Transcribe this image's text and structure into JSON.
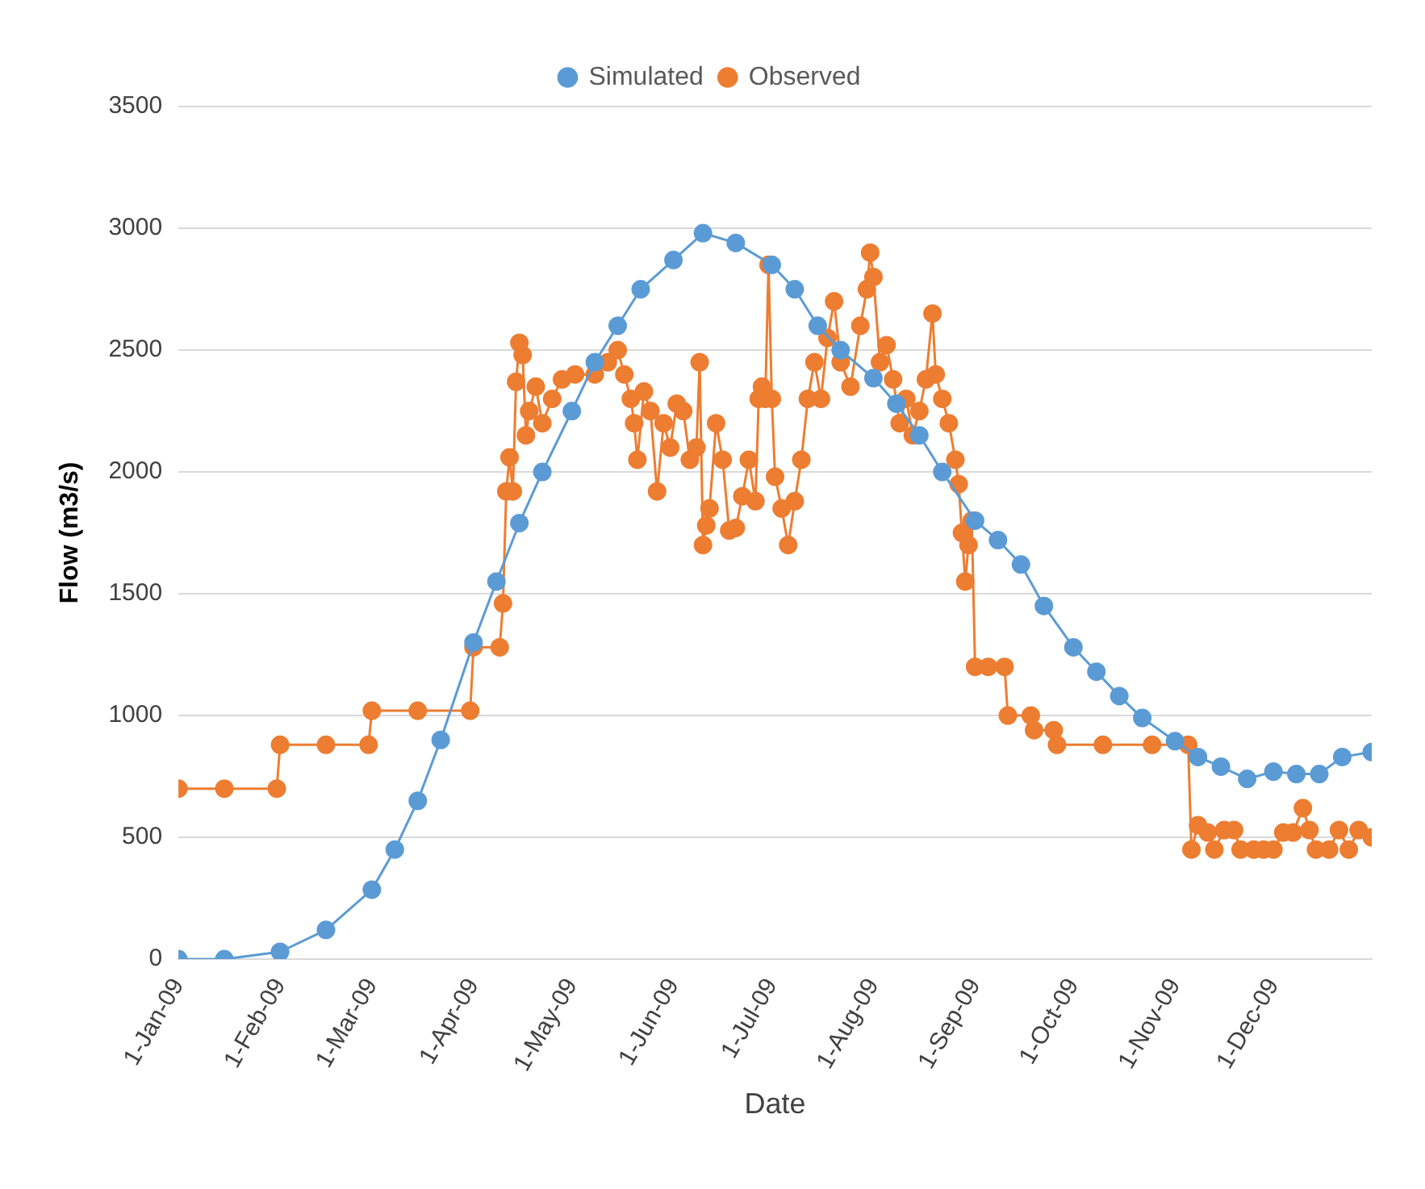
{
  "chart_data": {
    "type": "line",
    "xlabel": "Date",
    "ylabel": "Flow (m3/s)",
    "xlim": [
      "2009-01-01",
      "2009-12-31"
    ],
    "xticks": [
      {
        "value": "2009-01-01",
        "label": "1-Jan-09"
      },
      {
        "value": "2009-02-01",
        "label": "1-Feb-09"
      },
      {
        "value": "2009-03-01",
        "label": "1-Mar-09"
      },
      {
        "value": "2009-04-01",
        "label": "1-Apr-09"
      },
      {
        "value": "2009-05-01",
        "label": "1-May-09"
      },
      {
        "value": "2009-06-01",
        "label": "1-Jun-09"
      },
      {
        "value": "2009-07-01",
        "label": "1-Jul-09"
      },
      {
        "value": "2009-08-01",
        "label": "1-Aug-09"
      },
      {
        "value": "2009-09-01",
        "label": "1-Sep-09"
      },
      {
        "value": "2009-10-01",
        "label": "1-Oct-09"
      },
      {
        "value": "2009-11-01",
        "label": "1-Nov-09"
      },
      {
        "value": "2009-12-01",
        "label": "1-Dec-09"
      }
    ],
    "ylim": [
      0,
      3500
    ],
    "yticks": [
      0,
      500,
      1000,
      1500,
      2000,
      2500,
      3000,
      3500
    ],
    "grid": "y",
    "legend": "top",
    "marker": "circle",
    "line_style": "solid",
    "series": [
      {
        "name": "Simulated",
        "color": "#5b9bd5",
        "x": [
          "2009-01-01",
          "2009-01-15",
          "2009-02-01",
          "2009-02-15",
          "2009-03-01",
          "2009-03-08",
          "2009-03-15",
          "2009-03-22",
          "2009-04-01",
          "2009-04-08",
          "2009-04-15",
          "2009-04-22",
          "2009-05-01",
          "2009-05-08",
          "2009-05-15",
          "2009-05-22",
          "2009-06-01",
          "2009-06-10",
          "2009-06-20",
          "2009-07-01",
          "2009-07-08",
          "2009-07-15",
          "2009-07-22",
          "2009-08-01",
          "2009-08-08",
          "2009-08-15",
          "2009-08-22",
          "2009-09-01",
          "2009-09-08",
          "2009-09-15",
          "2009-09-22",
          "2009-10-01",
          "2009-10-08",
          "2009-10-15",
          "2009-10-22",
          "2009-11-01",
          "2009-11-08",
          "2009-11-15",
          "2009-11-23",
          "2009-12-01",
          "2009-12-08",
          "2009-12-15",
          "2009-12-22",
          "2009-12-31"
        ],
        "values": [
          0,
          0,
          30,
          120,
          285,
          450,
          650,
          900,
          1300,
          1550,
          1790,
          2000,
          2250,
          2450,
          2600,
          2750,
          2870,
          2980,
          2940,
          2850,
          2750,
          2600,
          2500,
          2385,
          2280,
          2150,
          2000,
          1800,
          1720,
          1620,
          1450,
          1280,
          1180,
          1080,
          990,
          895,
          830,
          790,
          740,
          770,
          760,
          760,
          830,
          850
        ]
      },
      {
        "name": "Observed",
        "color": "#ed7d31",
        "x": [
          "2009-01-01",
          "2009-01-15",
          "2009-01-31",
          "2009-02-01",
          "2009-02-15",
          "2009-02-28",
          "2009-03-01",
          "2009-03-15",
          "2009-03-31",
          "2009-04-01",
          "2009-04-09",
          "2009-04-10",
          "2009-04-11",
          "2009-04-12",
          "2009-04-13",
          "2009-04-14",
          "2009-04-15",
          "2009-04-16",
          "2009-04-17",
          "2009-04-18",
          "2009-04-20",
          "2009-04-22",
          "2009-04-25",
          "2009-04-28",
          "2009-05-02",
          "2009-05-08",
          "2009-05-12",
          "2009-05-15",
          "2009-05-17",
          "2009-05-19",
          "2009-05-20",
          "2009-05-21",
          "2009-05-23",
          "2009-05-25",
          "2009-05-27",
          "2009-05-29",
          "2009-05-31",
          "2009-06-02",
          "2009-06-04",
          "2009-06-06",
          "2009-06-08",
          "2009-06-09",
          "2009-06-10",
          "2009-06-11",
          "2009-06-12",
          "2009-06-14",
          "2009-06-16",
          "2009-06-18",
          "2009-06-20",
          "2009-06-22",
          "2009-06-24",
          "2009-06-26",
          "2009-06-27",
          "2009-06-28",
          "2009-06-29",
          "2009-06-30",
          "2009-07-01",
          "2009-07-02",
          "2009-07-04",
          "2009-07-06",
          "2009-07-08",
          "2009-07-10",
          "2009-07-12",
          "2009-07-14",
          "2009-07-16",
          "2009-07-18",
          "2009-07-20",
          "2009-07-22",
          "2009-07-25",
          "2009-07-28",
          "2009-07-30",
          "2009-07-31",
          "2009-08-01",
          "2009-08-03",
          "2009-08-05",
          "2009-08-07",
          "2009-08-09",
          "2009-08-11",
          "2009-08-13",
          "2009-08-15",
          "2009-08-17",
          "2009-08-19",
          "2009-08-20",
          "2009-08-22",
          "2009-08-24",
          "2009-08-26",
          "2009-08-27",
          "2009-08-28",
          "2009-08-29",
          "2009-08-30",
          "2009-08-31",
          "2009-09-01",
          "2009-09-05",
          "2009-09-10",
          "2009-09-11",
          "2009-09-18",
          "2009-09-19",
          "2009-09-25",
          "2009-09-26",
          "2009-10-10",
          "2009-10-25",
          "2009-11-05",
          "2009-11-06",
          "2009-11-08",
          "2009-11-11",
          "2009-11-13",
          "2009-11-16",
          "2009-11-19",
          "2009-11-21",
          "2009-11-25",
          "2009-11-28",
          "2009-12-01",
          "2009-12-04",
          "2009-12-07",
          "2009-12-10",
          "2009-12-12",
          "2009-12-14",
          "2009-12-18",
          "2009-12-21",
          "2009-12-24",
          "2009-12-27",
          "2009-12-31"
        ],
        "values": [
          700,
          700,
          700,
          880,
          880,
          880,
          1020,
          1020,
          1020,
          1280,
          1280,
          1460,
          1920,
          2060,
          1920,
          2370,
          2530,
          2480,
          2150,
          2250,
          2350,
          2200,
          2300,
          2380,
          2400,
          2400,
          2450,
          2500,
          2400,
          2300,
          2200,
          2050,
          2330,
          2250,
          1920,
          2200,
          2100,
          2280,
          2250,
          2050,
          2100,
          2450,
          1700,
          1780,
          1850,
          2200,
          2050,
          1760,
          1770,
          1900,
          2050,
          1880,
          2300,
          2350,
          2300,
          2850,
          2300,
          1980,
          1850,
          1700,
          1880,
          2050,
          2300,
          2450,
          2300,
          2550,
          2700,
          2450,
          2350,
          2600,
          2750,
          2900,
          2800,
          2450,
          2520,
          2380,
          2200,
          2300,
          2150,
          2250,
          2380,
          2650,
          2400,
          2300,
          2200,
          2050,
          1950,
          1750,
          1550,
          1700,
          1800,
          1200,
          1200,
          1200,
          1000,
          1000,
          940,
          940,
          880,
          880,
          880,
          880,
          450,
          550,
          520,
          450,
          530,
          530,
          450,
          450,
          450,
          450,
          520,
          520,
          620,
          530,
          450,
          450,
          530,
          450,
          530,
          500
        ]
      }
    ]
  }
}
